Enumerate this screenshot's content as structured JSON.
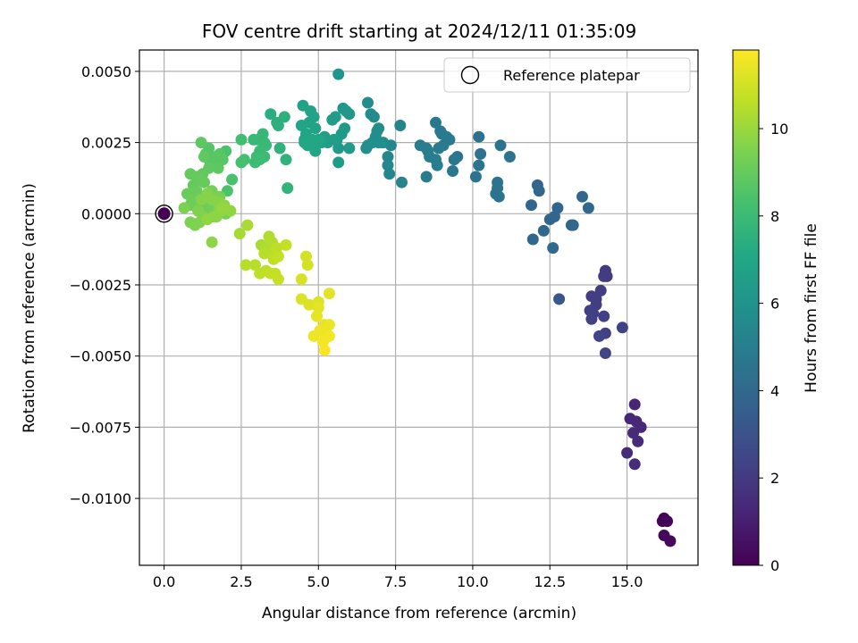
{
  "chart_data": {
    "type": "scatter",
    "title": "FOV centre drift starting at 2024/12/11 01:35:09",
    "xlabel": "Angular distance from reference (arcmin)",
    "ylabel": "Rotation from reference (arcmin)",
    "xlim": [
      -0.8,
      17.3
    ],
    "ylim": [
      -0.01235,
      0.00575
    ],
    "xticks": [
      0.0,
      2.5,
      5.0,
      7.5,
      10.0,
      12.5,
      15.0
    ],
    "xtick_labels": [
      "0.0",
      "2.5",
      "5.0",
      "7.5",
      "10.0",
      "12.5",
      "15.0"
    ],
    "yticks": [
      0.005,
      0.0025,
      0.0,
      -0.0025,
      -0.005,
      -0.0075,
      -0.01
    ],
    "ytick_labels": [
      "0.0050",
      "0.0025",
      "0.0000",
      "−0.0025",
      "−0.0050",
      "−0.0075",
      "−0.0100"
    ],
    "grid": true,
    "legend": {
      "placement": "top-right",
      "entries": [
        "Reference platepar"
      ]
    },
    "reference_point": {
      "x": 0.0,
      "y": 0.0,
      "color_value": 0.0
    },
    "colorbar": {
      "label": "Hours from first FF file",
      "colormap": "viridis",
      "range": [
        0,
        11.8
      ],
      "ticks": [
        0,
        2,
        4,
        6,
        8,
        10
      ],
      "tick_labels": [
        "0",
        "2",
        "4",
        "6",
        "8",
        "10"
      ]
    },
    "points": [
      [
        16.2,
        -0.0107,
        0.1
      ],
      [
        16.3,
        -0.0108,
        0.15
      ],
      [
        16.2,
        -0.0113,
        0.2
      ],
      [
        16.4,
        -0.0115,
        0.25
      ],
      [
        16.15,
        -0.0108,
        0.1
      ],
      [
        15.25,
        -0.0067,
        1.2
      ],
      [
        15.1,
        -0.0072,
        1.3
      ],
      [
        15.3,
        -0.0073,
        1.3
      ],
      [
        15.45,
        -0.0075,
        1.35
      ],
      [
        15.2,
        -0.0077,
        1.4
      ],
      [
        15.35,
        -0.008,
        1.4
      ],
      [
        15.0,
        -0.0084,
        1.45
      ],
      [
        15.25,
        -0.0088,
        1.5
      ],
      [
        14.3,
        -0.002,
        2.0
      ],
      [
        14.3,
        -0.0021,
        2.0
      ],
      [
        14.25,
        -0.0022,
        2.05
      ],
      [
        14.35,
        -0.0022,
        2.05
      ],
      [
        14.15,
        -0.0027,
        2.1
      ],
      [
        13.85,
        -0.0029,
        2.1
      ],
      [
        14.0,
        -0.003,
        2.15
      ],
      [
        14.0,
        -0.0032,
        2.15
      ],
      [
        13.8,
        -0.0034,
        2.2
      ],
      [
        13.9,
        -0.0035,
        2.2
      ],
      [
        14.25,
        -0.0036,
        2.2
      ],
      [
        13.85,
        -0.0037,
        2.25
      ],
      [
        14.85,
        -0.004,
        2.3
      ],
      [
        14.3,
        -0.0042,
        2.3
      ],
      [
        14.1,
        -0.0043,
        2.35
      ],
      [
        14.3,
        -0.0049,
        2.4
      ],
      [
        12.8,
        -0.003,
        3.2
      ],
      [
        11.9,
        0.0003,
        3.8
      ],
      [
        12.1,
        0.001,
        3.8
      ],
      [
        12.15,
        0.0008,
        3.85
      ],
      [
        12.5,
        -0.0002,
        3.8
      ],
      [
        12.75,
        0.0002,
        3.85
      ],
      [
        12.65,
        -0.0001,
        3.85
      ],
      [
        11.95,
        -0.0009,
        3.9
      ],
      [
        12.3,
        -0.0006,
        3.9
      ],
      [
        12.6,
        -0.0012,
        3.95
      ],
      [
        13.2,
        -0.0004,
        3.85
      ],
      [
        13.25,
        -0.0004,
        3.9
      ],
      [
        13.55,
        0.0006,
        3.9
      ],
      [
        13.75,
        0.0002,
        3.95
      ],
      [
        10.2,
        0.0027,
        4.4
      ],
      [
        10.8,
        0.0011,
        4.5
      ],
      [
        10.8,
        0.0009,
        4.5
      ],
      [
        10.75,
        0.0007,
        4.55
      ],
      [
        10.85,
        0.0006,
        4.55
      ],
      [
        10.9,
        0.0024,
        4.4
      ],
      [
        11.2,
        0.002,
        4.45
      ],
      [
        10.25,
        0.0021,
        4.45
      ],
      [
        10.2,
        0.0017,
        4.5
      ],
      [
        10.1,
        0.0013,
        4.5
      ],
      [
        9.5,
        0.002,
        4.6
      ],
      [
        9.4,
        0.0019,
        4.65
      ],
      [
        9.35,
        0.0015,
        4.65
      ],
      [
        8.8,
        0.0032,
        4.7
      ],
      [
        8.95,
        0.0029,
        4.75
      ],
      [
        9.0,
        0.0028,
        4.75
      ],
      [
        9.15,
        0.0027,
        4.8
      ],
      [
        9.05,
        0.0024,
        4.8
      ],
      [
        9.25,
        0.0026,
        4.8
      ],
      [
        8.9,
        0.0023,
        4.85
      ],
      [
        8.5,
        0.0013,
        4.9
      ],
      [
        8.3,
        0.0024,
        4.9
      ],
      [
        8.6,
        0.002,
        4.95
      ],
      [
        8.5,
        0.0023,
        4.95
      ],
      [
        8.85,
        0.0017,
        5.0
      ],
      [
        8.8,
        0.0019,
        5.0
      ],
      [
        8.55,
        0.0022,
        5.0
      ],
      [
        7.7,
        0.0011,
        5.3
      ],
      [
        7.65,
        0.0031,
        5.3
      ],
      [
        7.25,
        0.002,
        5.4
      ],
      [
        7.35,
        0.0024,
        5.4
      ],
      [
        7.3,
        0.0014,
        5.4
      ],
      [
        7.25,
        0.0017,
        5.45
      ],
      [
        7.1,
        0.0025,
        5.5
      ],
      [
        6.7,
        0.0035,
        5.6
      ],
      [
        6.8,
        0.0034,
        5.6
      ],
      [
        6.6,
        0.0039,
        5.65
      ],
      [
        6.9,
        0.0029,
        5.7
      ],
      [
        6.95,
        0.003,
        5.7
      ],
      [
        6.75,
        0.0025,
        5.75
      ],
      [
        6.85,
        0.0027,
        5.75
      ],
      [
        6.6,
        0.0024,
        5.8
      ],
      [
        6.55,
        0.0023,
        5.8
      ],
      [
        6.95,
        0.0025,
        5.85
      ],
      [
        7.0,
        0.0025,
        5.85
      ],
      [
        5.65,
        0.0049,
        6.1
      ],
      [
        5.8,
        0.0037,
        6.2
      ],
      [
        5.9,
        0.0036,
        6.2
      ],
      [
        6.0,
        0.0035,
        6.25
      ],
      [
        5.85,
        0.003,
        6.3
      ],
      [
        5.75,
        0.0028,
        6.3
      ],
      [
        6.0,
        0.0023,
        6.35
      ],
      [
        5.65,
        0.0023,
        6.35
      ],
      [
        5.6,
        0.0026,
        6.4
      ],
      [
        5.65,
        0.0018,
        6.4
      ],
      [
        5.55,
        0.0034,
        6.45
      ],
      [
        5.45,
        0.0033,
        6.45
      ],
      [
        5.3,
        0.0025,
        6.5
      ],
      [
        5.5,
        0.0026,
        6.5
      ],
      [
        5.2,
        0.0027,
        6.55
      ],
      [
        5.1,
        0.0025,
        6.6
      ],
      [
        4.5,
        0.0038,
        6.7
      ],
      [
        4.75,
        0.0036,
        6.75
      ],
      [
        4.85,
        0.0034,
        6.75
      ],
      [
        4.7,
        0.0032,
        6.8
      ],
      [
        4.9,
        0.003,
        6.8
      ],
      [
        4.45,
        0.0031,
        6.85
      ],
      [
        4.6,
        0.0028,
        6.85
      ],
      [
        4.55,
        0.0026,
        6.9
      ],
      [
        4.75,
        0.0025,
        6.9
      ],
      [
        4.85,
        0.0024,
        6.95
      ],
      [
        4.9,
        0.0022,
        6.95
      ],
      [
        4.65,
        0.0024,
        7.0
      ],
      [
        4.8,
        0.0026,
        7.0
      ],
      [
        4.95,
        0.0025,
        7.0
      ],
      [
        5.0,
        0.0026,
        7.05
      ],
      [
        4.55,
        0.0025,
        7.05
      ],
      [
        3.45,
        0.0035,
        7.4
      ],
      [
        3.65,
        0.0032,
        7.5
      ],
      [
        3.7,
        0.0031,
        7.5
      ],
      [
        3.75,
        0.0023,
        7.55
      ],
      [
        3.95,
        0.0019,
        7.6
      ],
      [
        4.0,
        0.0009,
        7.65
      ],
      [
        3.9,
        0.0034,
        7.45
      ],
      [
        3.2,
        0.0028,
        7.8
      ],
      [
        3.05,
        0.0026,
        7.85
      ],
      [
        3.25,
        0.0025,
        7.85
      ],
      [
        3.3,
        0.0024,
        7.9
      ],
      [
        2.9,
        0.0026,
        7.9
      ],
      [
        3.1,
        0.0022,
        7.95
      ],
      [
        3.0,
        0.002,
        8.0
      ],
      [
        3.25,
        0.002,
        8.0
      ],
      [
        2.95,
        0.0018,
        8.05
      ],
      [
        3.1,
        0.0019,
        8.05
      ],
      [
        2.5,
        0.0026,
        8.2
      ],
      [
        2.6,
        0.0019,
        8.25
      ],
      [
        2.5,
        0.0018,
        8.3
      ],
      [
        2.2,
        0.0012,
        8.35
      ],
      [
        2.0,
        0.0022,
        8.4
      ],
      [
        2.05,
        0.0008,
        8.45
      ],
      [
        1.55,
        0.002,
        8.6
      ],
      [
        1.45,
        0.0023,
        8.6
      ],
      [
        1.35,
        0.0021,
        8.65
      ],
      [
        1.5,
        0.0018,
        8.65
      ],
      [
        1.6,
        0.0017,
        8.7
      ],
      [
        1.7,
        0.0019,
        8.7
      ],
      [
        1.8,
        0.0021,
        8.75
      ],
      [
        1.9,
        0.0019,
        8.75
      ],
      [
        1.75,
        0.0016,
        8.8
      ],
      [
        1.2,
        0.0025,
        8.8
      ],
      [
        1.3,
        0.002,
        8.85
      ],
      [
        1.45,
        0.0016,
        8.85
      ],
      [
        1.25,
        0.0014,
        8.9
      ],
      [
        1.05,
        0.0013,
        8.9
      ],
      [
        0.85,
        0.0014,
        8.95
      ],
      [
        0.95,
        0.001,
        8.95
      ],
      [
        1.15,
        0.0012,
        9.0
      ],
      [
        1.3,
        0.0011,
        9.0
      ],
      [
        1.05,
        0.0008,
        9.05
      ],
      [
        0.75,
        0.0007,
        9.05
      ],
      [
        0.85,
        0.0003,
        9.1
      ],
      [
        0.9,
        0.0005,
        9.1
      ],
      [
        1.0,
        0.0004,
        9.15
      ],
      [
        1.2,
        0.0002,
        9.15
      ],
      [
        1.35,
        0.0004,
        9.2
      ],
      [
        1.45,
        0.0001,
        9.2
      ],
      [
        1.6,
        0.0003,
        9.25
      ],
      [
        1.7,
        -0.0001,
        9.25
      ],
      [
        1.65,
        0.0006,
        9.3
      ],
      [
        1.55,
        0.0008,
        9.3
      ],
      [
        1.8,
        0.0006,
        9.35
      ],
      [
        1.85,
        0.0003,
        9.35
      ],
      [
        1.95,
        0.0002,
        9.4
      ],
      [
        2.0,
        0.0,
        9.4
      ],
      [
        0.65,
        0.0002,
        9.45
      ],
      [
        0.85,
        -0.0003,
        9.45
      ],
      [
        1.0,
        -0.0004,
        9.5
      ],
      [
        1.15,
        -0.0003,
        9.5
      ],
      [
        1.25,
        -0.0001,
        9.55
      ],
      [
        1.1,
        0.0001,
        9.55
      ],
      [
        1.2,
        0.0005,
        9.6
      ],
      [
        1.4,
        0.0007,
        9.6
      ],
      [
        1.55,
        0.0005,
        9.65
      ],
      [
        1.75,
        0.0004,
        9.65
      ],
      [
        1.8,
        0.0002,
        9.7
      ],
      [
        1.6,
        -0.0001,
        9.7
      ],
      [
        1.55,
        -0.001,
        9.75
      ],
      [
        1.7,
        -0.0001,
        9.75
      ],
      [
        1.85,
        0.0001,
        9.8
      ],
      [
        1.95,
        0.0003,
        9.8
      ],
      [
        2.15,
        0.0001,
        9.85
      ],
      [
        1.4,
        -0.0002,
        9.85
      ],
      [
        1.9,
        0.0002,
        9.9
      ],
      [
        2.45,
        -0.0007,
        10.2
      ],
      [
        2.7,
        -0.0004,
        10.25
      ],
      [
        3.15,
        -0.0011,
        10.3
      ],
      [
        3.3,
        -0.0012,
        10.35
      ],
      [
        3.4,
        -0.0008,
        10.4
      ],
      [
        3.5,
        -0.001,
        10.45
      ],
      [
        3.25,
        -0.0014,
        10.5
      ],
      [
        3.5,
        -0.0014,
        10.55
      ],
      [
        3.65,
        -0.0012,
        10.6
      ],
      [
        3.55,
        -0.0016,
        10.65
      ],
      [
        3.7,
        -0.0015,
        10.7
      ],
      [
        3.95,
        -0.0011,
        10.75
      ],
      [
        2.65,
        -0.0018,
        10.5
      ],
      [
        2.95,
        -0.0018,
        10.55
      ],
      [
        3.1,
        -0.0021,
        10.6
      ],
      [
        3.3,
        -0.002,
        10.65
      ],
      [
        3.45,
        -0.0021,
        10.7
      ],
      [
        3.6,
        -0.0021,
        10.75
      ],
      [
        3.7,
        -0.0023,
        10.8
      ],
      [
        4.6,
        -0.0015,
        11.0
      ],
      [
        4.65,
        -0.0018,
        11.05
      ],
      [
        4.45,
        -0.0023,
        11.1
      ],
      [
        4.45,
        -0.003,
        11.15
      ],
      [
        4.7,
        -0.0032,
        11.2
      ],
      [
        5.0,
        -0.0031,
        11.25
      ],
      [
        5.0,
        -0.0033,
        11.3
      ],
      [
        5.35,
        -0.0028,
        11.3
      ],
      [
        4.95,
        -0.0036,
        11.35
      ],
      [
        5.2,
        -0.0039,
        11.4
      ],
      [
        5.35,
        -0.0039,
        11.45
      ],
      [
        5.05,
        -0.0041,
        11.5
      ],
      [
        4.85,
        -0.0043,
        11.5
      ],
      [
        5.2,
        -0.0042,
        11.55
      ],
      [
        5.35,
        -0.0043,
        11.6
      ],
      [
        5.15,
        -0.0045,
        11.65
      ],
      [
        5.2,
        -0.0048,
        11.7
      ]
    ]
  }
}
